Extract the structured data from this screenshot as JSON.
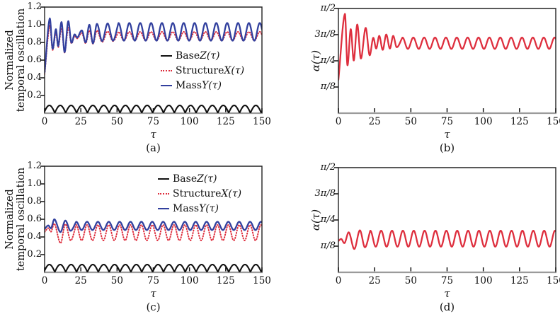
{
  "figure": {
    "background": "#ffffff",
    "frame_color": "#222222",
    "baseline_color": "#9b9b9b",
    "tick_color": "#111111",
    "text_color": "#111111",
    "accent_red": "#de2f3e",
    "accent_blue": "#32409e",
    "accent_black": "#111111"
  },
  "chart_data": [
    {
      "id": "a",
      "type": "line",
      "caption": "(a)",
      "xlabel": "τ",
      "ylabel_lines": [
        "Normalized",
        "temporal oscillation"
      ],
      "x": {
        "min": 0,
        "max": 150,
        "ticks": [
          0,
          25,
          50,
          75,
          100,
          125,
          150
        ]
      },
      "y": {
        "min": 0,
        "max": 1.2,
        "italic": false,
        "ticks": [
          {
            "v": 0.2,
            "label": "0.2"
          },
          {
            "v": 0.4,
            "label": "0.4"
          },
          {
            "v": 0.6,
            "label": "0.6"
          },
          {
            "v": 0.8,
            "label": "0.8"
          },
          {
            "v": 1.0,
            "label": "1.0"
          },
          {
            "v": 1.2,
            "label": "1.2"
          }
        ]
      },
      "legend": {
        "position": "bottom-right-inside",
        "items": [
          {
            "prefix": "Base ",
            "math": "Z(τ)",
            "color": "#111111",
            "dash": "solid"
          },
          {
            "prefix": "Structure ",
            "math": "X(τ)",
            "color": "#de2f3e",
            "dash": "dotted"
          },
          {
            "prefix": "Mass ",
            "math": "Y(τ)",
            "color": "#32409e",
            "dash": "solid"
          }
        ]
      },
      "series": [
        {
          "name": "Base Z(τ)",
          "color": "#111111",
          "width": 2.1,
          "dash": "solid",
          "model": "abs_sin",
          "offset": 0.004,
          "amp": 0.084,
          "period": 7.5,
          "t0": -0.45
        },
        {
          "name": "Structure X(τ)",
          "color": "#de2f3e",
          "width": 2.0,
          "dash": "dotted",
          "keypoints": [
            [
              0,
              0.44
            ],
            [
              3.5,
              0.99
            ],
            [
              5.5,
              0.715
            ],
            [
              7.8,
              0.91
            ],
            [
              9.4,
              0.745
            ],
            [
              11.7,
              0.96
            ],
            [
              13.8,
              0.685
            ],
            [
              16.3,
              0.965
            ],
            [
              18.4,
              0.79
            ],
            [
              20.6,
              0.87
            ],
            [
              22.6,
              0.845
            ],
            [
              25.8,
              0.905
            ],
            [
              28.4,
              0.79
            ],
            [
              30.9,
              0.935
            ],
            [
              33.4,
              0.785
            ],
            [
              36.1,
              0.935
            ],
            [
              39.7,
              0.805
            ],
            [
              43.5,
              0.925
            ],
            [
              47.2,
              0.815
            ],
            [
              51,
              0.92
            ]
          ],
          "steady": {
            "mean": 0.87,
            "amp": 0.05,
            "period": 7.5,
            "peak": 51
          }
        },
        {
          "name": "Mass Y(τ)",
          "color": "#32409e",
          "width": 2.3,
          "dash": "solid",
          "keypoints": [
            [
              0,
              0.46
            ],
            [
              3.5,
              1.07
            ],
            [
              5.5,
              0.73
            ],
            [
              7.8,
              0.95
            ],
            [
              9.4,
              0.76
            ],
            [
              11.7,
              1.03
            ],
            [
              13.8,
              0.69
            ],
            [
              16.3,
              1.04
            ],
            [
              18.4,
              0.8
            ],
            [
              20.6,
              0.89
            ],
            [
              22.6,
              0.855
            ],
            [
              25.8,
              0.935
            ],
            [
              28.4,
              0.8
            ],
            [
              30.9,
              1.0
            ],
            [
              33.4,
              0.79
            ],
            [
              36.1,
              1.01
            ],
            [
              39.7,
              0.815
            ],
            [
              43.5,
              1.015
            ],
            [
              47.2,
              0.82
            ],
            [
              51,
              1.02
            ]
          ],
          "steady": {
            "mean": 0.92,
            "amp": 0.1,
            "period": 7.5,
            "peak": 51
          }
        }
      ]
    },
    {
      "id": "b",
      "type": "line",
      "caption": "(b)",
      "xlabel": "τ",
      "ylabel": "α(τ)",
      "x": {
        "min": 0,
        "max": 150,
        "ticks": [
          0,
          25,
          50,
          75,
          100,
          125,
          150
        ]
      },
      "y": {
        "min": 0,
        "max": 1.5708,
        "italic": true,
        "ticks": [
          {
            "v": 0.3927,
            "label": "π/8"
          },
          {
            "v": 0.7854,
            "label": "π/4"
          },
          {
            "v": 1.1781,
            "label": "3π/8"
          },
          {
            "v": 1.5708,
            "label": "π/2"
          }
        ]
      },
      "series": [
        {
          "name": "α(τ)",
          "color": "#de2f3e",
          "width": 2.3,
          "dash": "solid",
          "keypoints": [
            [
              0,
              0.5
            ],
            [
              4.5,
              1.49
            ],
            [
              6.2,
              0.72
            ],
            [
              8.5,
              1.26
            ],
            [
              10.6,
              0.79
            ],
            [
              13,
              1.33
            ],
            [
              15.5,
              0.82
            ],
            [
              18.8,
              1.28
            ],
            [
              21.5,
              0.87
            ],
            [
              24,
              1.13
            ],
            [
              26.1,
              0.97
            ],
            [
              28.2,
              1.16
            ],
            [
              30.6,
              0.95
            ],
            [
              33,
              1.18
            ],
            [
              35.5,
              0.97
            ],
            [
              37.8,
              1.16
            ],
            [
              40.2,
              0.99
            ],
            [
              44.2,
              1.135
            ]
          ],
          "steady": {
            "mean": 1.05,
            "amp": 0.085,
            "period": 7.5,
            "peak": 44.2
          }
        }
      ]
    },
    {
      "id": "c",
      "type": "line",
      "caption": "(c)",
      "xlabel": "τ",
      "ylabel_lines": [
        "Normalized",
        "temporal oscillation"
      ],
      "x": {
        "min": 0,
        "max": 150,
        "ticks": [
          0,
          25,
          50,
          75,
          100,
          125,
          150
        ]
      },
      "y": {
        "min": 0,
        "max": 1.2,
        "italic": false,
        "ticks": [
          {
            "v": 0.2,
            "label": "0.2"
          },
          {
            "v": 0.4,
            "label": "0.4"
          },
          {
            "v": 0.6,
            "label": "0.6"
          },
          {
            "v": 0.8,
            "label": "0.8"
          },
          {
            "v": 1.0,
            "label": "1.0"
          },
          {
            "v": 1.2,
            "label": "1.2"
          }
        ]
      },
      "legend": {
        "position": "top-right-inside",
        "items": [
          {
            "prefix": "Base ",
            "math": "Z(τ)",
            "color": "#111111",
            "dash": "solid"
          },
          {
            "prefix": "Structure ",
            "math": "X(τ)",
            "color": "#de2f3e",
            "dash": "dotted"
          },
          {
            "prefix": "Mass ",
            "math": "Y(τ)",
            "color": "#32409e",
            "dash": "solid"
          }
        ]
      },
      "series": [
        {
          "name": "Base Z(τ)",
          "color": "#111111",
          "width": 2.1,
          "dash": "solid",
          "model": "abs_sin",
          "offset": 0.004,
          "amp": 0.084,
          "period": 7.5,
          "t0": -0.45
        },
        {
          "name": "Structure X(τ)",
          "color": "#de2f3e",
          "width": 2.0,
          "dash": "dotted",
          "keypoints": [
            [
              0,
              0.455
            ],
            [
              2.5,
              0.5
            ],
            [
              4.5,
              0.46
            ],
            [
              6.8,
              0.55
            ],
            [
              11,
              0.33
            ],
            [
              14.3,
              0.545
            ],
            [
              18,
              0.36
            ],
            [
              21.8,
              0.536
            ]
          ],
          "steady": {
            "mean": 0.448,
            "amp": 0.088,
            "period": 7.5,
            "peak": 21.8
          }
        },
        {
          "name": "Mass Y(τ)",
          "color": "#32409e",
          "width": 2.3,
          "dash": "solid",
          "keypoints": [
            [
              0,
              0.49
            ],
            [
              2.5,
              0.53
            ],
            [
              4.5,
              0.5
            ],
            [
              6.8,
              0.6
            ],
            [
              10.9,
              0.455
            ],
            [
              14.3,
              0.585
            ],
            [
              17.9,
              0.47
            ],
            [
              21.8,
              0.572
            ]
          ],
          "steady": {
            "mean": 0.525,
            "amp": 0.047,
            "period": 7.5,
            "peak": 21.8
          }
        }
      ]
    },
    {
      "id": "d",
      "type": "line",
      "caption": "(d)",
      "xlabel": "τ",
      "ylabel": "α(τ)",
      "x": {
        "min": 0,
        "max": 150,
        "ticks": [
          0,
          25,
          50,
          75,
          100,
          125,
          150
        ]
      },
      "y": {
        "min": 0,
        "max": 1.5708,
        "italic": true,
        "ticks": [
          {
            "v": 0.3927,
            "label": "π/8"
          },
          {
            "v": 0.7854,
            "label": "π/4"
          },
          {
            "v": 1.1781,
            "label": "3π/8"
          },
          {
            "v": 1.5708,
            "label": "π/2"
          }
        ]
      },
      "series": [
        {
          "name": "α(τ)",
          "color": "#de2f3e",
          "width": 2.3,
          "dash": "solid",
          "keypoints": [
            [
              0,
              0.47
            ],
            [
              2,
              0.5
            ],
            [
              4.3,
              0.44
            ],
            [
              7.2,
              0.6
            ],
            [
              11,
              0.35
            ],
            [
              14.8,
              0.63
            ],
            [
              18.3,
              0.375
            ],
            [
              22,
              0.625
            ]
          ],
          "steady": {
            "mean": 0.505,
            "amp": 0.12,
            "period": 7.5,
            "peak": 22
          }
        }
      ]
    }
  ]
}
